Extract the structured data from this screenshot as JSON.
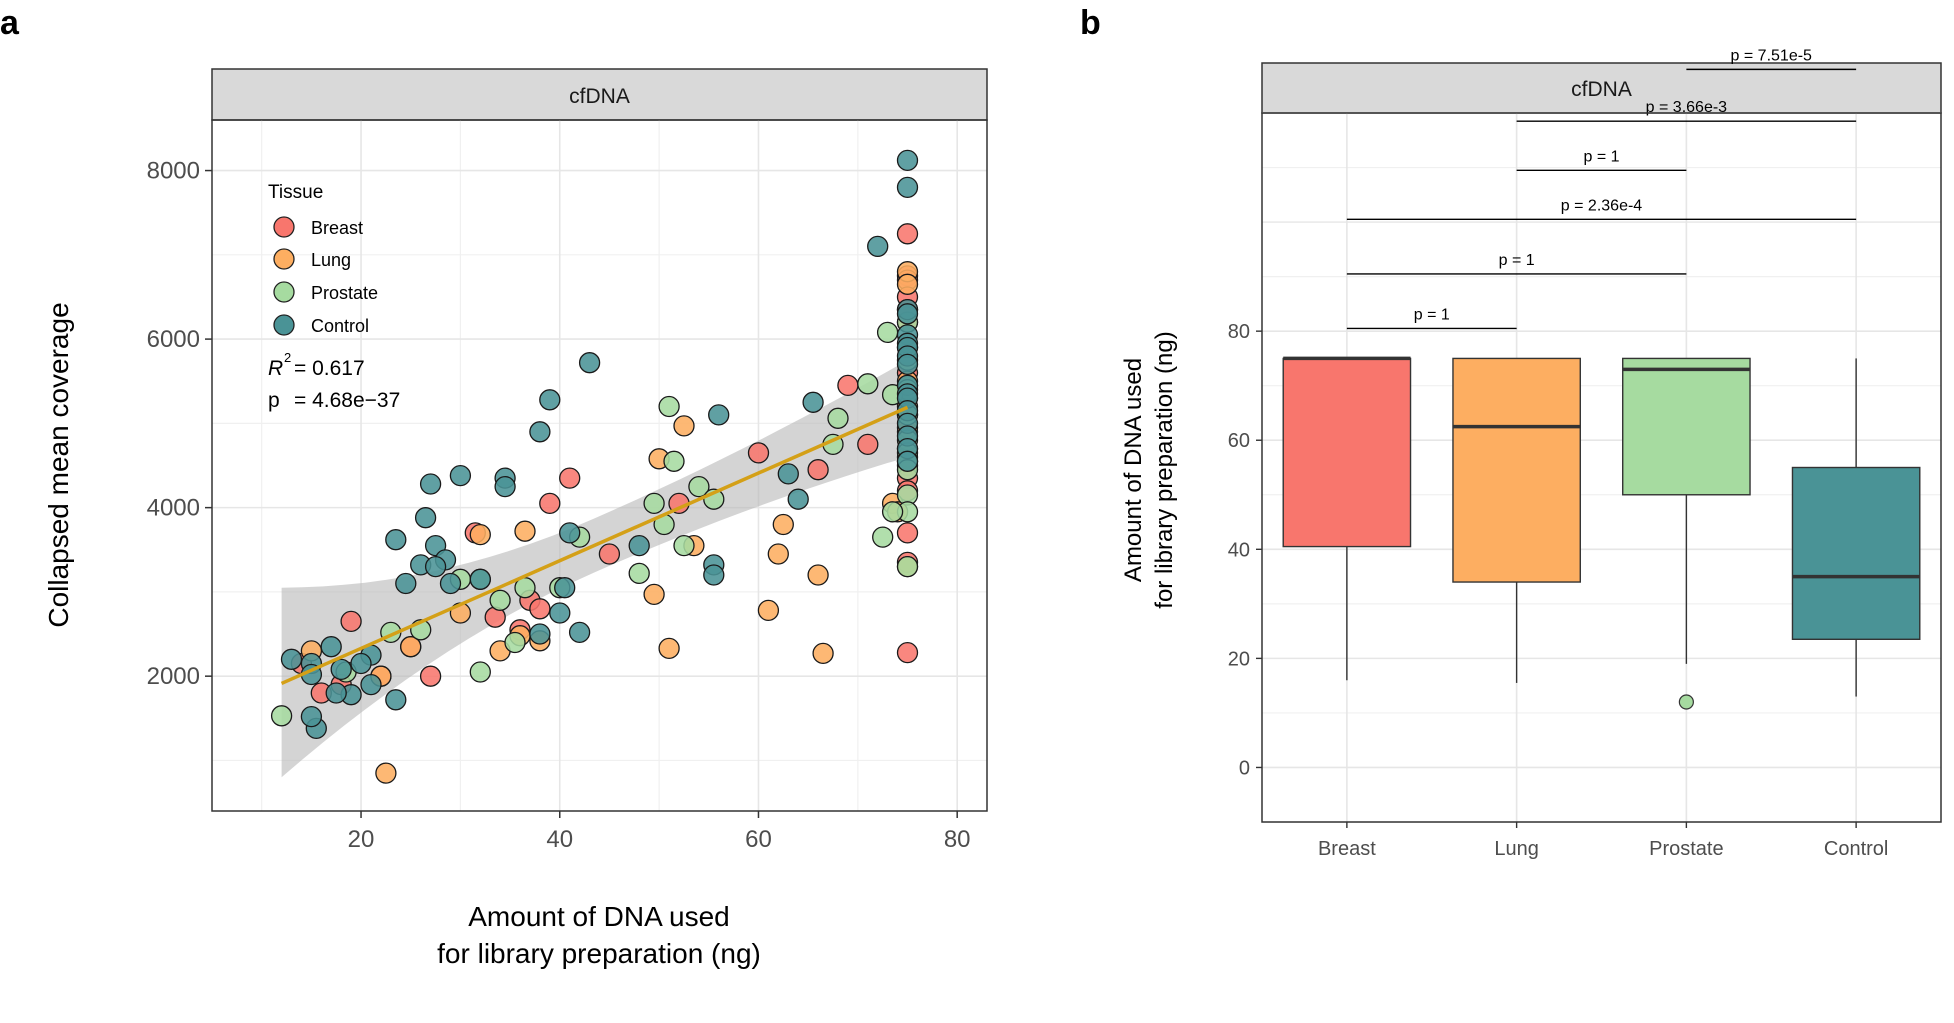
{
  "panels": {
    "a": {
      "letter": "a"
    },
    "b": {
      "letter": "b"
    }
  },
  "chart_data": [
    {
      "type": "scatter",
      "panel": "a",
      "facet_label": "cfDNA",
      "xlabel": [
        "Amount of DNA used",
        "for library preparation (ng)"
      ],
      "ylabel": "Collapsed mean coverage",
      "xlim": [
        5,
        83
      ],
      "ylim": [
        400,
        8600
      ],
      "x_ticks": [
        20,
        40,
        60,
        80
      ],
      "y_ticks": [
        2000,
        4000,
        6000,
        8000
      ],
      "grid": true,
      "legend": {
        "title": "Tissue",
        "placement": "top-left",
        "entries": [
          {
            "name": "Breast",
            "color": "#F8766D"
          },
          {
            "name": "Lung",
            "color": "#FDAE61"
          },
          {
            "name": "Prostate",
            "color": "#A6DBA0"
          },
          {
            "name": "Control",
            "color": "#4A9396"
          }
        ]
      },
      "stats": {
        "r2_label": "R",
        "r2_sup": "2",
        "r2_value": "= 0.617",
        "p_label": "p",
        "p_value": "= 4.68e−37"
      },
      "fit": {
        "color": "#D4A017",
        "x_range": [
          12,
          75
        ],
        "slope": 52.0,
        "intercept": 1290,
        "band": {
          "color": "#b8b8b8",
          "upper_at_start": 3050,
          "lower_at_start": 800,
          "upper_at_end": 5750,
          "lower_at_end": 4600
        }
      },
      "series": [
        {
          "name": "Breast",
          "color": "#F8766D",
          "points": [
            [
              75,
              7250
            ],
            [
              75,
              6750
            ],
            [
              75,
              6700
            ],
            [
              75,
              6500
            ],
            [
              75,
              6350
            ],
            [
              75,
              6200
            ],
            [
              75,
              5600
            ],
            [
              75,
              5300
            ],
            [
              75,
              5100
            ],
            [
              75,
              4900
            ],
            [
              75,
              4700
            ],
            [
              75,
              4500
            ],
            [
              75,
              4350
            ],
            [
              75,
              4200
            ],
            [
              75,
              3700
            ],
            [
              75,
              3350
            ],
            [
              75,
              2280
            ],
            [
              69,
              5450
            ],
            [
              71,
              4750
            ],
            [
              66,
              4450
            ],
            [
              60,
              4650
            ],
            [
              52,
              4050
            ],
            [
              41,
              4350
            ],
            [
              39,
              4050
            ],
            [
              31.5,
              3700
            ],
            [
              33.5,
              2700
            ],
            [
              36,
              2550
            ],
            [
              37,
              2900
            ],
            [
              38,
              2800
            ],
            [
              45,
              3450
            ],
            [
              27,
              2000
            ],
            [
              25,
              2350
            ],
            [
              22,
              2000
            ],
            [
              19,
              2650
            ],
            [
              18,
              1900
            ],
            [
              16,
              1800
            ],
            [
              14,
              2150
            ]
          ]
        },
        {
          "name": "Lung",
          "color": "#FDAE61",
          "points": [
            [
              75,
              6800
            ],
            [
              75,
              6650
            ],
            [
              75,
              5900
            ],
            [
              75,
              5500
            ],
            [
              75,
              5200
            ],
            [
              75,
              4950
            ],
            [
              75,
              4600
            ],
            [
              75,
              3300
            ],
            [
              73.5,
              4050
            ],
            [
              74,
              3950
            ],
            [
              66,
              3200
            ],
            [
              66.5,
              2270
            ],
            [
              62.5,
              3800
            ],
            [
              62,
              3450
            ],
            [
              61,
              2780
            ],
            [
              52.5,
              4970
            ],
            [
              50,
              4580
            ],
            [
              53.5,
              3550
            ],
            [
              49.5,
              2970
            ],
            [
              51,
              2330
            ],
            [
              36.5,
              3720
            ],
            [
              32,
              3680
            ],
            [
              34,
              2300
            ],
            [
              38,
              2420
            ],
            [
              36,
              2480
            ],
            [
              30,
              2750
            ],
            [
              25,
              2350
            ],
            [
              22,
              2000
            ],
            [
              15,
              2300
            ],
            [
              22.5,
              850
            ]
          ]
        },
        {
          "name": "Prostate",
          "color": "#A6DBA0",
          "points": [
            [
              75,
              6200
            ],
            [
              75,
              5750
            ],
            [
              75,
              5450
            ],
            [
              75,
              5400
            ],
            [
              75,
              5100
            ],
            [
              75,
              4800
            ],
            [
              75,
              4650
            ],
            [
              75,
              4550
            ],
            [
              75,
              4450
            ],
            [
              75,
              4150
            ],
            [
              75,
              3950
            ],
            [
              75,
              3300
            ],
            [
              73,
              6080
            ],
            [
              71,
              5470
            ],
            [
              73.5,
              5340
            ],
            [
              68,
              5060
            ],
            [
              67.5,
              4750
            ],
            [
              72.5,
              3650
            ],
            [
              73.5,
              3950
            ],
            [
              51,
              5200
            ],
            [
              51.5,
              4550
            ],
            [
              54,
              4250
            ],
            [
              55.5,
              4100
            ],
            [
              49.5,
              4050
            ],
            [
              50.5,
              3800
            ],
            [
              52.5,
              3550
            ],
            [
              48,
              3220
            ],
            [
              42,
              3650
            ],
            [
              40,
              3050
            ],
            [
              36.5,
              3050
            ],
            [
              32,
              3150
            ],
            [
              34,
              2900
            ],
            [
              35.5,
              2400
            ],
            [
              30,
              3150
            ],
            [
              26,
              2550
            ],
            [
              23,
              2520
            ],
            [
              18.5,
              2050
            ],
            [
              12,
              1530
            ],
            [
              32,
              2050
            ]
          ]
        },
        {
          "name": "Control",
          "color": "#4A9396",
          "points": [
            [
              75,
              8120
            ],
            [
              75,
              7800
            ],
            [
              75,
              6350
            ],
            [
              75,
              6300
            ],
            [
              75,
              6050
            ],
            [
              75,
              5950
            ],
            [
              75,
              5900
            ],
            [
              75,
              5800
            ],
            [
              75,
              5700
            ],
            [
              75,
              5450
            ],
            [
              75,
              5350
            ],
            [
              75,
              5300
            ],
            [
              75,
              5150
            ],
            [
              75,
              5000
            ],
            [
              75,
              4850
            ],
            [
              75,
              4700
            ],
            [
              75,
              4550
            ],
            [
              72,
              7100
            ],
            [
              65.5,
              5250
            ],
            [
              64,
              4100
            ],
            [
              63,
              4400
            ],
            [
              56,
              5100
            ],
            [
              55.5,
              3320
            ],
            [
              55.5,
              3200
            ],
            [
              48,
              3550
            ],
            [
              43,
              5720
            ],
            [
              41,
              3700
            ],
            [
              39,
              5280
            ],
            [
              38,
              4900
            ],
            [
              40,
              2750
            ],
            [
              42,
              2520
            ],
            [
              38,
              2500
            ],
            [
              40.5,
              3050
            ],
            [
              34.5,
              4350
            ],
            [
              34.5,
              4250
            ],
            [
              30,
              4380
            ],
            [
              27,
              4280
            ],
            [
              26.5,
              3880
            ],
            [
              27.5,
              3550
            ],
            [
              28.5,
              3380
            ],
            [
              26,
              3320
            ],
            [
              27.5,
              3300
            ],
            [
              29,
              3100
            ],
            [
              32,
              3150
            ],
            [
              23.5,
              3620
            ],
            [
              24.5,
              3100
            ],
            [
              21,
              2250
            ],
            [
              20,
              2150
            ],
            [
              21,
              1900
            ],
            [
              17,
              2350
            ],
            [
              19,
              1780
            ],
            [
              17.5,
              1800
            ],
            [
              18,
              2080
            ],
            [
              15,
              2150
            ],
            [
              15,
              2020
            ],
            [
              13,
              2200
            ],
            [
              15.5,
              1380
            ],
            [
              15,
              1520
            ],
            [
              23.5,
              1720
            ]
          ]
        }
      ]
    },
    {
      "type": "box",
      "panel": "b",
      "facet_label": "cfDNA",
      "xlabel": "",
      "ylabel": [
        "Amount of DNA used",
        "for library preparation (ng)"
      ],
      "ylim": [
        -10,
        120
      ],
      "y_ticks": [
        0,
        20,
        40,
        60,
        80
      ],
      "grid": true,
      "categories": [
        "Breast",
        "Lung",
        "Prostate",
        "Control"
      ],
      "boxes": [
        {
          "name": "Breast",
          "color": "#F8766D",
          "q1": 40.5,
          "median": 75,
          "q3": 75,
          "whisker_low": 16,
          "whisker_high": 75,
          "outliers": []
        },
        {
          "name": "Lung",
          "color": "#FDAE61",
          "q1": 34,
          "median": 62.5,
          "q3": 75,
          "whisker_low": 15.5,
          "whisker_high": 75,
          "outliers": []
        },
        {
          "name": "Prostate",
          "color": "#A6DBA0",
          "q1": 50,
          "median": 73,
          "q3": 75,
          "whisker_low": 19,
          "whisker_high": 75,
          "outliers": [
            12
          ]
        },
        {
          "name": "Control",
          "color": "#4A9396",
          "q1": 23.5,
          "median": 35,
          "q3": 55,
          "whisker_low": 13,
          "whisker_high": 75,
          "outliers": []
        }
      ],
      "comparisons": [
        {
          "from": "Breast",
          "to": "Lung",
          "label": "p = 1",
          "y": 80.5
        },
        {
          "from": "Breast",
          "to": "Prostate",
          "label": "p = 1",
          "y": 90.5
        },
        {
          "from": "Breast",
          "to": "Control",
          "label": "p = 2.36e-4",
          "y": 100.5
        },
        {
          "from": "Lung",
          "to": "Prostate",
          "label": "p = 1",
          "y": 109.5
        },
        {
          "from": "Lung",
          "to": "Control",
          "label": "p = 3.66e-3",
          "y": 118.5
        },
        {
          "from": "Prostate",
          "to": "Control",
          "label": "p = 7.51e-5",
          "y": 128
        }
      ]
    }
  ]
}
